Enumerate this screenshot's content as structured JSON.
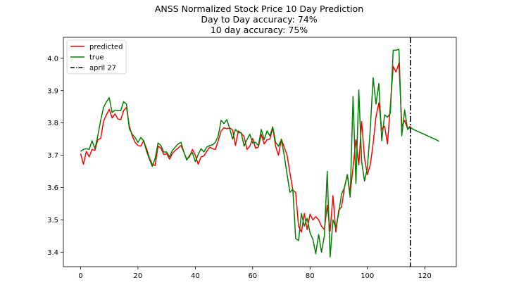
{
  "chart_data": {
    "type": "line",
    "title_lines": [
      "ANSS Normalized Stock Price 10 Day Prediction",
      "Day to Day accuracy: 74%",
      "10 day accuracy: 75%"
    ],
    "xlabel": "",
    "ylabel": "",
    "xlim": [
      -6,
      131
    ],
    "ylim": [
      3.355,
      4.065
    ],
    "xticks": [
      0,
      20,
      40,
      60,
      80,
      100,
      120
    ],
    "yticks": [
      3.4,
      3.5,
      3.6,
      3.7,
      3.8,
      3.9,
      4.0
    ],
    "ytick_labels": [
      "3.4",
      "3.5",
      "3.6",
      "3.7",
      "3.8",
      "3.9",
      "4.0"
    ],
    "grid": false,
    "legend_position": "top-left",
    "vline": {
      "name": "april 27",
      "x": 115,
      "color": "#000000",
      "style": "dashdot"
    },
    "series": [
      {
        "name": "predicted",
        "color": "#ff0000",
        "x": [
          0,
          1,
          2,
          3,
          4,
          5,
          6,
          7,
          8,
          9,
          10,
          11,
          12,
          13,
          14,
          15,
          16,
          17,
          18,
          19,
          20,
          21,
          22,
          23,
          24,
          25,
          26,
          27,
          28,
          29,
          30,
          31,
          32,
          33,
          34,
          35,
          36,
          37,
          38,
          39,
          40,
          41,
          42,
          43,
          44,
          45,
          46,
          47,
          48,
          49,
          50,
          51,
          52,
          53,
          54,
          55,
          56,
          57,
          58,
          59,
          60,
          61,
          62,
          63,
          64,
          65,
          66,
          67,
          68,
          69,
          70,
          71,
          72,
          73,
          74,
          75,
          76,
          77,
          78,
          79,
          80,
          81,
          82,
          83,
          84,
          85,
          86,
          87,
          88,
          89,
          90,
          91,
          92,
          93,
          94,
          95,
          96,
          97,
          98,
          99,
          100,
          101,
          102,
          103,
          104,
          105,
          106,
          107,
          108,
          109,
          110,
          111,
          112,
          113,
          114,
          115
        ],
        "values": [
          3.705,
          3.672,
          3.712,
          3.695,
          3.718,
          3.715,
          3.748,
          3.752,
          3.805,
          3.825,
          3.842,
          3.815,
          3.828,
          3.812,
          3.81,
          3.838,
          3.848,
          3.79,
          3.76,
          3.74,
          3.73,
          3.728,
          3.745,
          3.72,
          3.692,
          3.672,
          3.668,
          3.728,
          3.722,
          3.702,
          3.705,
          3.688,
          3.705,
          3.715,
          3.722,
          3.73,
          3.71,
          3.688,
          3.695,
          3.718,
          3.7,
          3.672,
          3.695,
          3.698,
          3.712,
          3.725,
          3.72,
          3.718,
          3.745,
          3.775,
          3.785,
          3.782,
          3.785,
          3.778,
          3.73,
          3.775,
          3.768,
          3.758,
          3.718,
          3.728,
          3.752,
          3.722,
          3.725,
          3.765,
          3.735,
          3.748,
          3.75,
          3.785,
          3.728,
          3.7,
          3.75,
          3.725,
          3.7,
          3.645,
          3.592,
          3.585,
          3.48,
          3.462,
          3.52,
          3.47,
          3.518,
          3.5,
          3.51,
          3.5,
          3.48,
          3.47,
          3.545,
          3.465,
          3.575,
          3.462,
          3.53,
          3.54,
          3.6,
          3.64,
          3.58,
          3.662,
          3.748,
          3.67,
          3.805,
          3.69,
          3.64,
          3.67,
          3.735,
          3.82,
          3.862,
          3.78,
          3.79,
          3.735,
          3.852,
          3.975,
          3.958,
          3.985,
          3.79,
          3.808,
          3.782,
          3.79
        ]
      },
      {
        "name": "true",
        "color": "#008000",
        "x": [
          0,
          1,
          2,
          3,
          4,
          5,
          6,
          7,
          8,
          9,
          10,
          11,
          12,
          13,
          14,
          15,
          16,
          17,
          18,
          19,
          20,
          21,
          22,
          23,
          24,
          25,
          26,
          27,
          28,
          29,
          30,
          31,
          32,
          33,
          34,
          35,
          36,
          37,
          38,
          39,
          40,
          41,
          42,
          43,
          44,
          45,
          46,
          47,
          48,
          49,
          50,
          51,
          52,
          53,
          54,
          55,
          56,
          57,
          58,
          59,
          60,
          61,
          62,
          63,
          64,
          65,
          66,
          67,
          68,
          69,
          70,
          71,
          72,
          73,
          74,
          75,
          76,
          77,
          78,
          79,
          80,
          81,
          82,
          83,
          84,
          85,
          86,
          87,
          88,
          89,
          90,
          91,
          92,
          93,
          94,
          95,
          96,
          97,
          98,
          99,
          100,
          101,
          102,
          103,
          104,
          105,
          106,
          107,
          108,
          109,
          110,
          111,
          112,
          113,
          114,
          115,
          116,
          117,
          118,
          119,
          120,
          121,
          122,
          123,
          124,
          125
        ],
        "values": [
          3.712,
          3.718,
          3.72,
          3.718,
          3.745,
          3.72,
          3.76,
          3.808,
          3.848,
          3.865,
          3.878,
          3.832,
          3.84,
          3.838,
          3.838,
          3.866,
          3.858,
          3.782,
          3.765,
          3.755,
          3.74,
          3.755,
          3.745,
          3.712,
          3.688,
          3.665,
          3.69,
          3.738,
          3.73,
          3.71,
          3.71,
          3.695,
          3.715,
          3.725,
          3.735,
          3.74,
          3.71,
          3.685,
          3.7,
          3.708,
          3.68,
          3.702,
          3.72,
          3.71,
          3.725,
          3.73,
          3.732,
          3.74,
          3.76,
          3.808,
          3.798,
          3.81,
          3.782,
          3.75,
          3.78,
          3.77,
          3.77,
          3.728,
          3.748,
          3.765,
          3.738,
          3.74,
          3.73,
          3.78,
          3.748,
          3.775,
          3.76,
          3.788,
          3.74,
          3.728,
          3.748,
          3.7,
          3.64,
          3.585,
          3.595,
          3.442,
          3.436,
          3.52,
          3.48,
          3.505,
          3.46,
          3.44,
          3.395,
          3.455,
          3.4,
          3.45,
          3.65,
          3.385,
          3.5,
          3.475,
          3.52,
          3.58,
          3.6,
          3.64,
          3.57,
          3.882,
          3.612,
          3.902,
          3.68,
          3.62,
          3.66,
          3.78,
          3.94,
          3.858,
          3.922,
          3.745,
          3.825,
          3.818,
          3.83,
          4.025,
          4.025,
          4.028,
          3.76,
          3.84,
          3.78,
          3.786,
          3.78,
          3.776,
          3.772,
          3.768,
          3.764,
          3.76,
          3.756,
          3.752,
          3.748,
          3.743
        ]
      }
    ]
  }
}
